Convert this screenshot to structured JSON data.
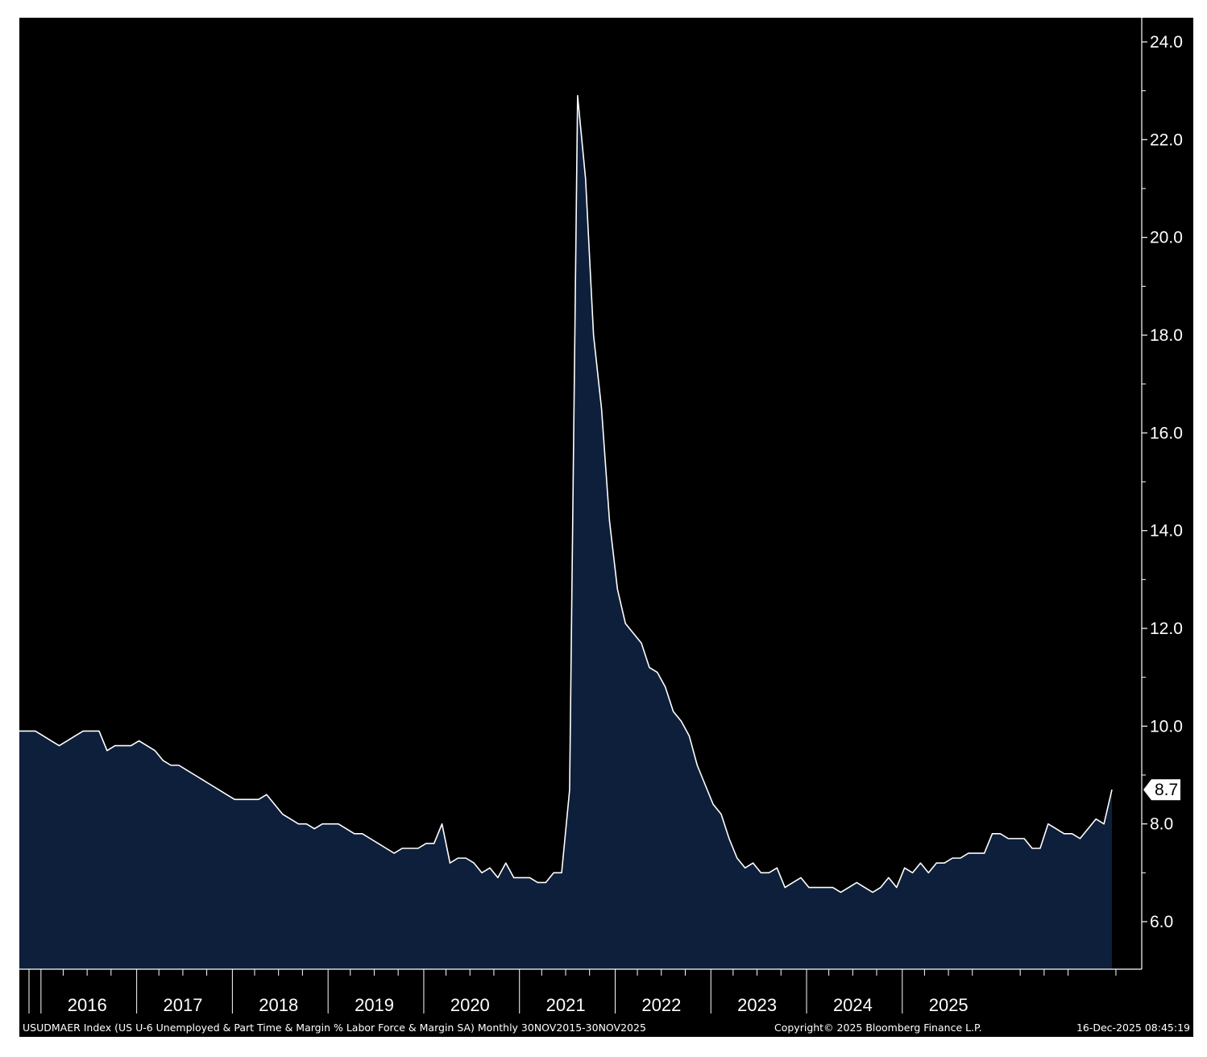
{
  "chart_data": {
    "type": "area",
    "title": "",
    "xlabel": "",
    "ylabel": "",
    "x_start": "2015-11",
    "x_end": "2025-11",
    "frequency": "monthly",
    "values": [
      9.9,
      9.9,
      9.9,
      9.8,
      9.7,
      9.6,
      9.7,
      9.8,
      9.9,
      9.9,
      9.9,
      9.5,
      9.6,
      9.6,
      9.6,
      9.7,
      9.6,
      9.5,
      9.3,
      9.2,
      9.2,
      9.1,
      9.0,
      8.9,
      8.8,
      8.7,
      8.6,
      8.5,
      8.5,
      8.5,
      8.5,
      8.6,
      8.4,
      8.2,
      8.1,
      8.0,
      8.0,
      7.9,
      8.0,
      8.0,
      8.0,
      7.9,
      7.8,
      7.8,
      7.7,
      7.6,
      7.5,
      7.4,
      7.5,
      7.5,
      7.5,
      7.6,
      7.6,
      8.0,
      7.2,
      7.3,
      7.3,
      7.2,
      7.0,
      7.1,
      6.9,
      7.2,
      6.9,
      6.9,
      6.9,
      6.8,
      6.8,
      7.0,
      7.0,
      8.7,
      22.9,
      21.2,
      18.0,
      16.5,
      14.2,
      12.8,
      12.1,
      11.9,
      11.7,
      11.2,
      11.1,
      10.8,
      10.3,
      10.1,
      9.8,
      9.2,
      8.8,
      8.4,
      8.2,
      7.7,
      7.3,
      7.1,
      7.2,
      7.0,
      7.0,
      7.1,
      6.7,
      6.8,
      6.9,
      6.7,
      6.7,
      6.7,
      6.7,
      6.6,
      6.7,
      6.8,
      6.7,
      6.6,
      6.7,
      6.9,
      6.7,
      7.1,
      7.0,
      7.2,
      7.0,
      7.2,
      7.2,
      7.3,
      7.3,
      7.4,
      7.4,
      7.4,
      7.8,
      7.8,
      7.7,
      7.7,
      7.7,
      7.5,
      7.5,
      8.0,
      7.9,
      7.8,
      7.8,
      7.7,
      7.9,
      8.1,
      8.0,
      8.7
    ],
    "ylim": [
      5.0,
      24.5
    ],
    "y_ticks": [
      "6.0",
      "8.0",
      "10.0",
      "12.0",
      "14.0",
      "16.0",
      "18.0",
      "20.0",
      "22.0",
      "24.0"
    ],
    "x_ticks": [
      "2016",
      "2017",
      "2018",
      "2019",
      "2020",
      "2021",
      "2022",
      "2023",
      "2024",
      "2025"
    ],
    "last_value_label": "8.7",
    "grid": false,
    "y_axis_side": "right",
    "colors": {
      "background": "#000000",
      "area_fill": "#0e1f3b",
      "line": "#ffffff",
      "axis": "#ffffff",
      "last_label_bg": "#ffffff",
      "last_label_text": "#000000"
    }
  },
  "footer": {
    "description": "USUDMAER Index (US U-6 Unemployed & Part Time & Margin % Labor Force & Margin SA) Monthly 30NOV2015-30NOV2025",
    "copyright": "Copyright© 2025 Bloomberg Finance L.P.",
    "timestamp": "16-Dec-2025 08:45:19"
  }
}
